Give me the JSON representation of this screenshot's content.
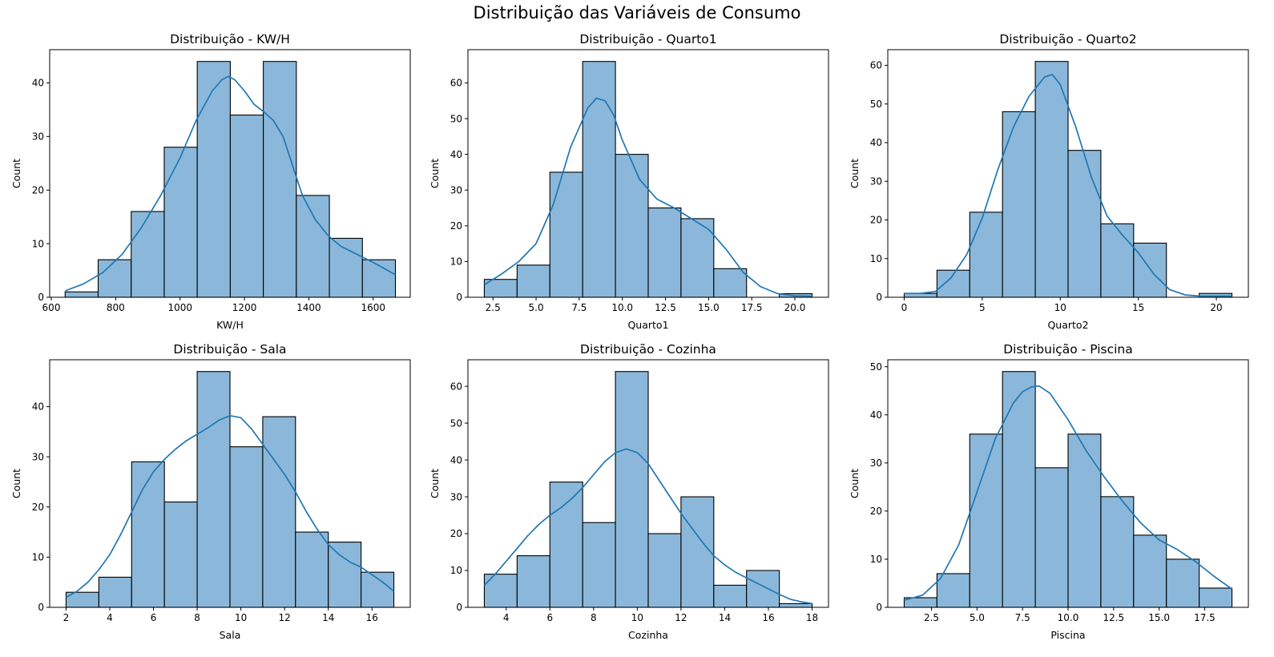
{
  "figure": {
    "title": "Distribuição das Variáveis de Consumo",
    "bar_color": "#8bb8da",
    "bar_edge_color": "#000000",
    "kde_color": "#1f77b4"
  },
  "chart_data": [
    {
      "type": "bar",
      "title": "Distribuição - KW/H",
      "xlabel": "KW/H",
      "ylabel": "Count",
      "xlim": [
        595,
        1715
      ],
      "ylim": [
        0,
        46.2
      ],
      "xticks": [
        600,
        800,
        1000,
        1200,
        1400,
        1600
      ],
      "xtick_labels": [
        "600",
        "800",
        "1000",
        "1200",
        "1400",
        "1600"
      ],
      "yticks": [
        0,
        10,
        20,
        30,
        40
      ],
      "bin_edges": [
        643,
        745.6,
        848.2,
        950.8,
        1053.4,
        1156,
        1258.6,
        1361.2,
        1463.8,
        1566.4,
        1669
      ],
      "counts": [
        1,
        7,
        16,
        28,
        44,
        34,
        44,
        19,
        11,
        7
      ],
      "kde": {
        "x": [
          643,
          700,
          760,
          820,
          880,
          940,
          1000,
          1050,
          1100,
          1130,
          1150,
          1170,
          1200,
          1230,
          1260,
          1290,
          1320,
          1350,
          1380,
          1420,
          1460,
          1500,
          1550,
          1600,
          1669
        ],
        "y": [
          1.2,
          2.5,
          4.6,
          8,
          13,
          19,
          26,
          33,
          38.5,
          40.6,
          41.2,
          40.6,
          38.5,
          36,
          34.6,
          33,
          30,
          24.5,
          19,
          14.5,
          11.5,
          9.5,
          8,
          6.5,
          4.2
        ]
      }
    },
    {
      "type": "bar",
      "title": "Distribuição - Quarto1",
      "xlabel": "Quarto1",
      "ylabel": "Count",
      "xlim": [
        1.05,
        21.95
      ],
      "ylim": [
        0,
        69.3
      ],
      "xticks": [
        2.5,
        5,
        7.5,
        10,
        12.5,
        15,
        17.5,
        20
      ],
      "xtick_labels": [
        "2.5",
        "5.0",
        "7.5",
        "10.0",
        "12.5",
        "15.0",
        "17.5",
        "20.0"
      ],
      "yticks": [
        0,
        10,
        20,
        30,
        40,
        50,
        60
      ],
      "bin_edges": [
        2,
        3.9,
        5.8,
        7.7,
        9.6,
        11.5,
        13.4,
        15.3,
        17.2,
        19.1,
        21
      ],
      "counts": [
        5,
        9,
        35,
        66,
        40,
        25,
        22,
        8,
        0,
        1
      ],
      "kde": {
        "x": [
          2,
          3,
          4,
          5,
          6,
          7,
          8,
          8.5,
          9,
          9.5,
          10,
          11,
          12,
          13,
          14,
          15,
          16,
          17,
          18,
          19,
          20,
          21
        ],
        "y": [
          3.5,
          6.5,
          10,
          15,
          26,
          42,
          53,
          55.7,
          55,
          51,
          44,
          33,
          27.5,
          25,
          22,
          19,
          13.5,
          7,
          3,
          1,
          0.4,
          0.3
        ]
      }
    },
    {
      "type": "bar",
      "title": "Distribuição - Quarto2",
      "xlabel": "Quarto2",
      "ylabel": "Count",
      "xlim": [
        -1.05,
        22.05
      ],
      "ylim": [
        0,
        64.05
      ],
      "xticks": [
        0,
        5,
        10,
        15,
        20
      ],
      "xtick_labels": [
        "0",
        "5",
        "10",
        "15",
        "20"
      ],
      "yticks": [
        0,
        10,
        20,
        30,
        40,
        50,
        60
      ],
      "bin_edges": [
        0,
        2.1,
        4.2,
        6.3,
        8.4,
        10.5,
        12.6,
        14.7,
        16.8,
        18.9,
        21
      ],
      "counts": [
        1,
        7,
        22,
        48,
        61,
        38,
        19,
        14,
        0,
        1
      ],
      "kde": {
        "x": [
          0,
          1,
          2,
          3,
          4,
          5,
          6,
          7,
          8,
          9,
          9.5,
          10,
          11,
          12,
          13,
          14,
          15,
          16,
          17,
          18,
          19,
          20,
          21
        ],
        "y": [
          1,
          1,
          1.5,
          5,
          11,
          20.5,
          33,
          44,
          52,
          57,
          57.6,
          55,
          44,
          31,
          21,
          16,
          11.5,
          6,
          2,
          0.6,
          0.3,
          0.3,
          0.3
        ]
      }
    },
    {
      "type": "bar",
      "title": "Distribuição - Sala",
      "xlabel": "Sala",
      "ylabel": "Count",
      "xlim": [
        1.25,
        17.75
      ],
      "ylim": [
        0,
        49.35
      ],
      "xticks": [
        2,
        4,
        6,
        8,
        10,
        12,
        14,
        16
      ],
      "xtick_labels": [
        "2",
        "4",
        "6",
        "8",
        "10",
        "12",
        "14",
        "16"
      ],
      "yticks": [
        0,
        10,
        20,
        30,
        40
      ],
      "bin_edges": [
        2,
        3.5,
        5,
        6.5,
        8,
        9.5,
        11,
        12.5,
        14,
        15.5,
        17
      ],
      "counts": [
        3,
        6,
        29,
        21,
        47,
        32,
        38,
        15,
        13,
        7
      ],
      "kde": {
        "x": [
          2,
          2.5,
          3,
          3.5,
          4,
          4.5,
          5,
          5.5,
          6,
          6.5,
          7,
          7.5,
          8,
          8.5,
          9,
          9.5,
          10,
          10.5,
          11,
          11.5,
          12,
          12.5,
          13,
          13.5,
          14,
          14.5,
          15,
          15.5,
          16,
          16.5,
          17
        ],
        "y": [
          2,
          3.2,
          5,
          7.5,
          10.5,
          14.5,
          19,
          23.5,
          27,
          29.5,
          31.5,
          33.2,
          34.5,
          35.8,
          37.3,
          38.2,
          37.8,
          35.5,
          32.5,
          29.5,
          26.5,
          23,
          19,
          15.5,
          12.5,
          10.5,
          9,
          8,
          6.5,
          5,
          3.2
        ]
      }
    },
    {
      "type": "bar",
      "title": "Distribuição - Cozinha",
      "xlabel": "Cozinha",
      "ylabel": "Count",
      "xlim": [
        2.25,
        18.75
      ],
      "ylim": [
        0,
        67.2
      ],
      "xticks": [
        4,
        6,
        8,
        10,
        12,
        14,
        16,
        18
      ],
      "xtick_labels": [
        "4",
        "6",
        "8",
        "10",
        "12",
        "14",
        "16",
        "18"
      ],
      "yticks": [
        0,
        10,
        20,
        30,
        40,
        50,
        60
      ],
      "bin_edges": [
        3,
        4.5,
        6,
        7.5,
        9,
        10.5,
        12,
        13.5,
        15,
        16.5,
        18
      ],
      "counts": [
        9,
        14,
        34,
        23,
        64,
        20,
        30,
        6,
        10,
        1
      ],
      "kde": {
        "x": [
          3,
          3.5,
          4,
          4.5,
          5,
          5.5,
          6,
          6.5,
          7,
          7.5,
          8,
          8.5,
          9,
          9.5,
          10,
          10.5,
          11,
          11.5,
          12,
          12.5,
          13,
          13.5,
          14,
          14.5,
          15,
          15.5,
          16,
          16.5,
          17,
          17.5,
          18
        ],
        "y": [
          6,
          9,
          12.5,
          16,
          19.5,
          22.5,
          25,
          27,
          29.5,
          32.5,
          36,
          39.5,
          42,
          43,
          42,
          39,
          34.5,
          30,
          25.5,
          21.5,
          17.5,
          14,
          11.5,
          9.5,
          8,
          6.5,
          5,
          3.5,
          2.2,
          1.5,
          1
        ]
      }
    },
    {
      "type": "bar",
      "title": "Distribuição - Piscina",
      "xlabel": "Piscina",
      "ylabel": "Count",
      "xlim": [
        0.1,
        19.9
      ],
      "ylim": [
        0,
        51.45
      ],
      "xticks": [
        2.5,
        5,
        7.5,
        10,
        12.5,
        15,
        17.5
      ],
      "xtick_labels": [
        "2.5",
        "5.0",
        "7.5",
        "10.0",
        "12.5",
        "15.0",
        "17.5"
      ],
      "yticks": [
        0,
        10,
        20,
        30,
        40,
        50
      ],
      "bin_edges": [
        1,
        2.8,
        4.6,
        6.4,
        8.2,
        10,
        11.8,
        13.6,
        15.4,
        17.2,
        19
      ],
      "counts": [
        2,
        7,
        36,
        49,
        29,
        36,
        23,
        15,
        10,
        4
      ],
      "kde": {
        "x": [
          1,
          2,
          3,
          4,
          5,
          6,
          7,
          7.5,
          8,
          8.4,
          9,
          10,
          11,
          12,
          13,
          14,
          15,
          16,
          17,
          18,
          19
        ],
        "y": [
          1.5,
          2.5,
          6,
          13,
          24,
          35,
          42.5,
          44.8,
          45.8,
          46,
          44.5,
          39,
          32.5,
          27,
          22,
          17.5,
          14,
          12,
          9.5,
          6.5,
          3.8
        ]
      }
    }
  ]
}
